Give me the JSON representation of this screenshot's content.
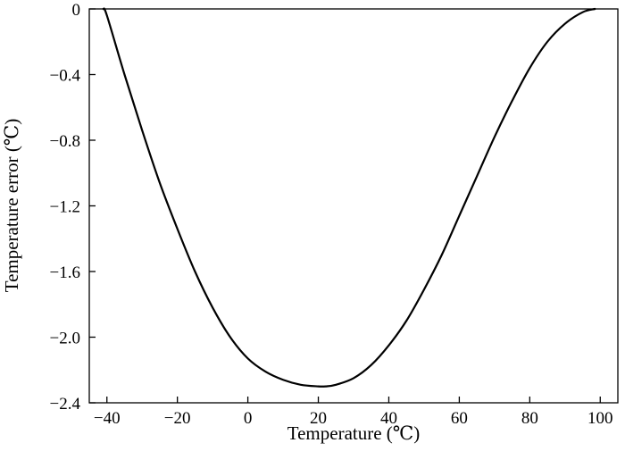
{
  "chart_data": {
    "type": "line",
    "title": "",
    "xlabel": "Temperature (℃)",
    "ylabel": "Temperature error (℃)",
    "xlim": [
      -45,
      105
    ],
    "ylim": [
      -2.4,
      0
    ],
    "grid": false,
    "x_ticks": [
      -40,
      -20,
      0,
      20,
      40,
      60,
      80,
      100
    ],
    "x_tick_labels": [
      "−40",
      "−20",
      "0",
      "20",
      "40",
      "60",
      "80",
      "100"
    ],
    "y_ticks": [
      0,
      -0.4,
      -0.8,
      -1.2,
      -1.6,
      -2.0,
      -2.4
    ],
    "y_tick_labels": [
      "0",
      "−0.4",
      "−0.8",
      "−1.2",
      "−1.6",
      "−2.0",
      "−2.4"
    ],
    "series": [
      {
        "color": "#000000",
        "x": [
          -41,
          -40,
          -35,
          -30,
          -25,
          -20,
          -15,
          -10,
          -5,
          0,
          5,
          10,
          15,
          20,
          22,
          25,
          30,
          35,
          40,
          45,
          50,
          55,
          60,
          65,
          70,
          75,
          80,
          85,
          90,
          95,
          98.5
        ],
        "y": [
          0.0,
          -0.04,
          -0.4,
          -0.74,
          -1.06,
          -1.34,
          -1.6,
          -1.82,
          -2.0,
          -2.13,
          -2.21,
          -2.26,
          -2.29,
          -2.3,
          -2.3,
          -2.29,
          -2.25,
          -2.17,
          -2.05,
          -1.9,
          -1.71,
          -1.5,
          -1.26,
          -1.02,
          -0.78,
          -0.56,
          -0.36,
          -0.2,
          -0.09,
          -0.02,
          0.0
        ]
      }
    ]
  }
}
